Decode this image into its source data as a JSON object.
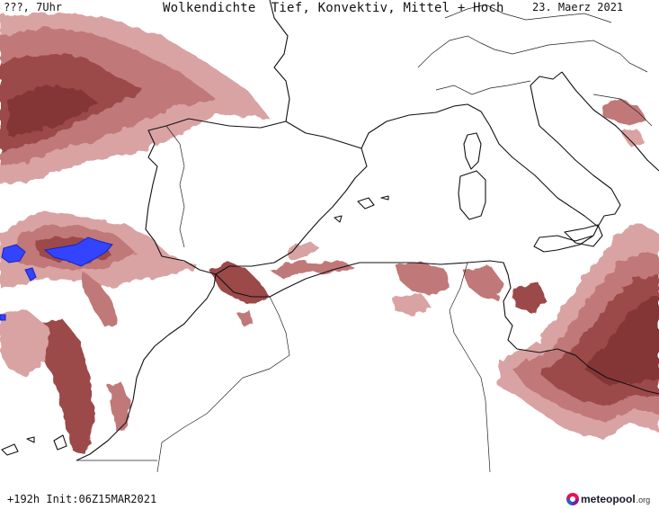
{
  "header": {
    "time_label": "???, 7Uhr",
    "title": "Wolkendichte  Tief, Konvektiv, Mittel + Hoch",
    "date_label": "23. Maerz 2021"
  },
  "footer": {
    "init_label": "+192h  Init:06Z15MAR2021",
    "logo_text": "meteopool",
    "logo_suffix": ".org"
  },
  "colors": {
    "cloud_light": "#d9a3a3",
    "cloud_mid": "#c07878",
    "cloud_dark": "#9b4848",
    "cloud_darkest": "#843434",
    "convective_blue": "#3344ff",
    "coastline": "#111111"
  }
}
